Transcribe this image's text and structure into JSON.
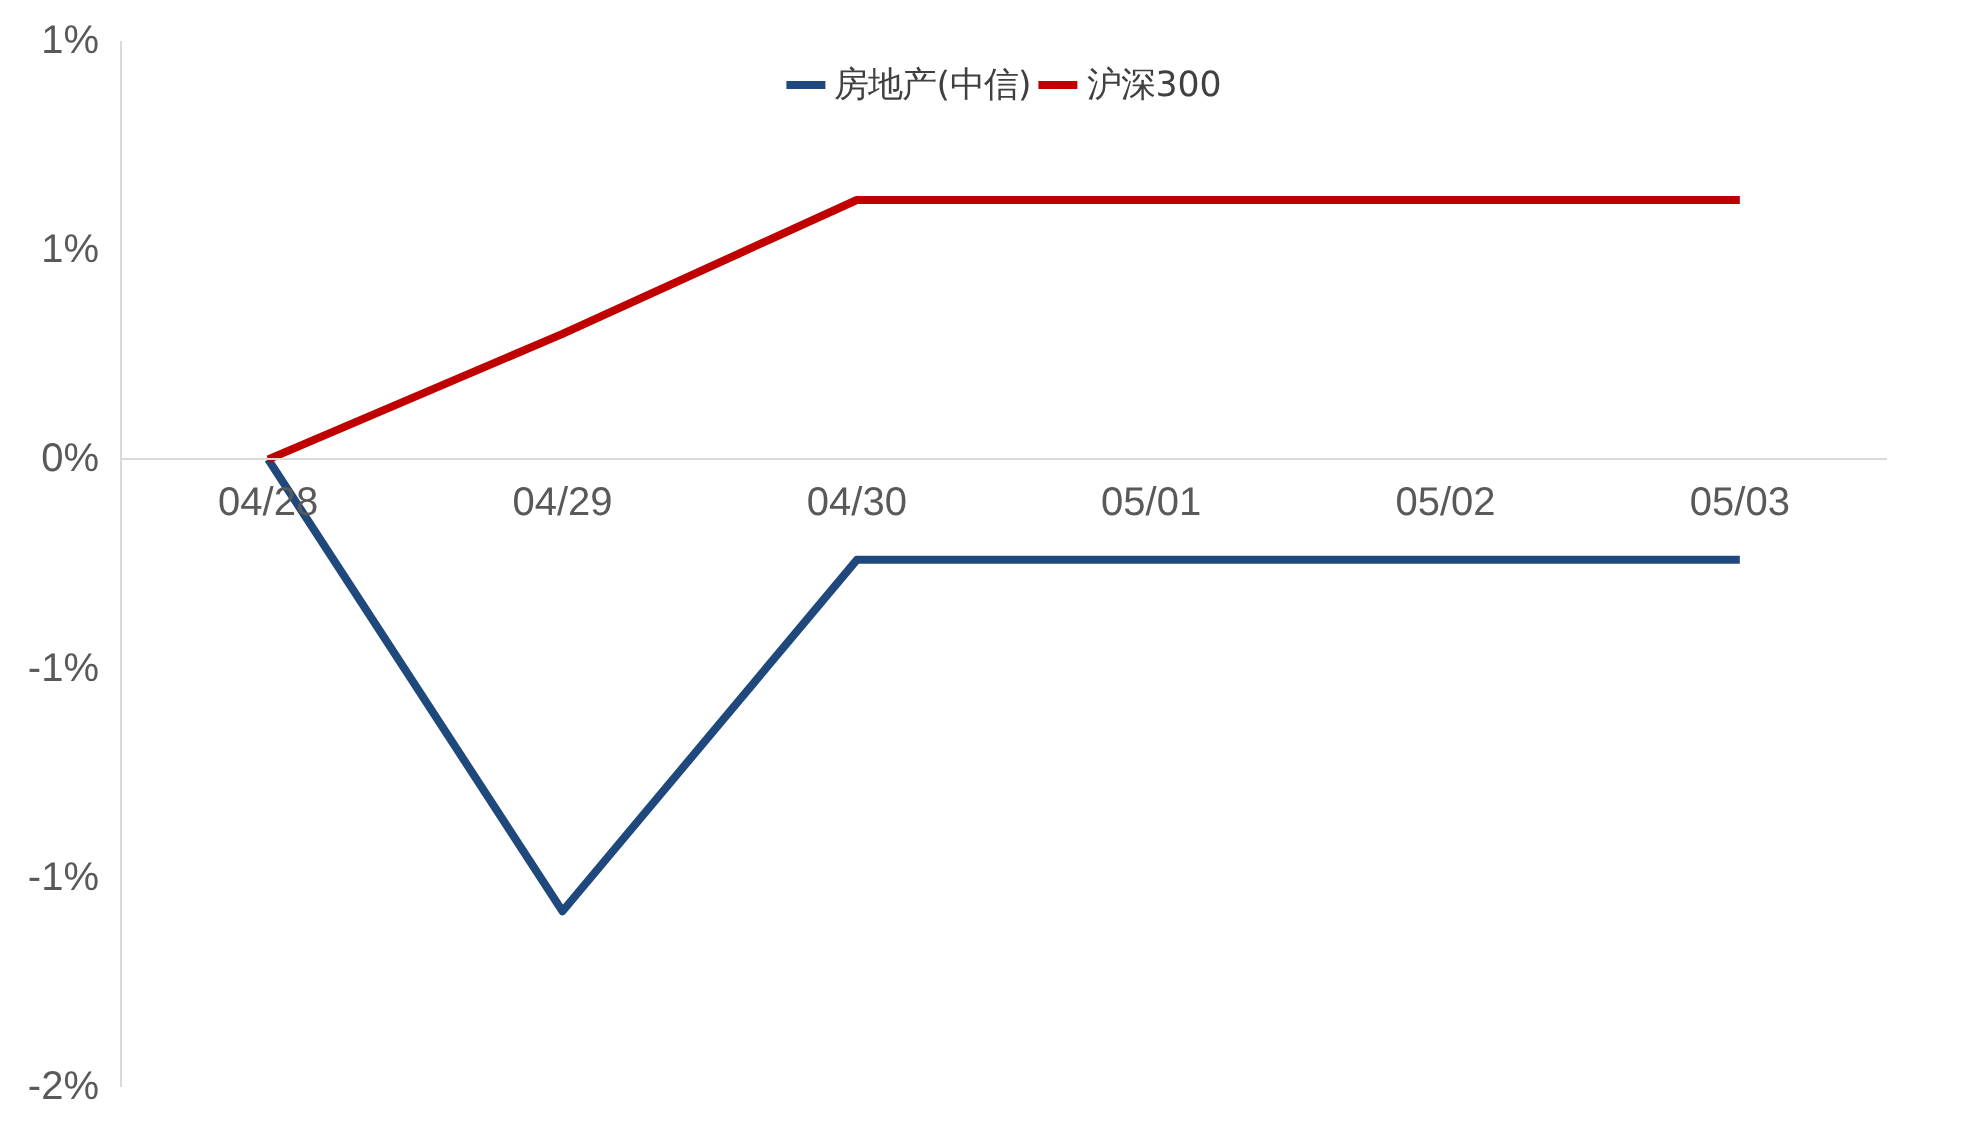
{
  "chart_data": {
    "type": "line",
    "categories": [
      "04/28",
      "04/29",
      "04/30",
      "05/01",
      "05/02",
      "05/03"
    ],
    "series": [
      {
        "name": "房地产(中信)",
        "color": "#1f497d",
        "values": [
          0,
          -1.08,
          -0.24,
          -0.24,
          -0.24,
          -0.24
        ]
      },
      {
        "name": "沪深300",
        "color": "#c00000",
        "values": [
          0,
          0.3,
          0.62,
          0.62,
          0.62,
          0.62
        ]
      }
    ],
    "ylim": [
      -1.5,
      1.0
    ],
    "yticks": [
      {
        "value": 1.0,
        "label": "1%"
      },
      {
        "value": 0.5,
        "label": "1%"
      },
      {
        "value": 0,
        "label": "0%"
      },
      {
        "value": -0.5,
        "label": "-1%"
      },
      {
        "value": -1.0,
        "label": "-1%"
      },
      {
        "value": -1.5,
        "label": "-2%"
      }
    ],
    "grid": false,
    "legend": "top",
    "marker": "none",
    "line_style": "solid"
  }
}
